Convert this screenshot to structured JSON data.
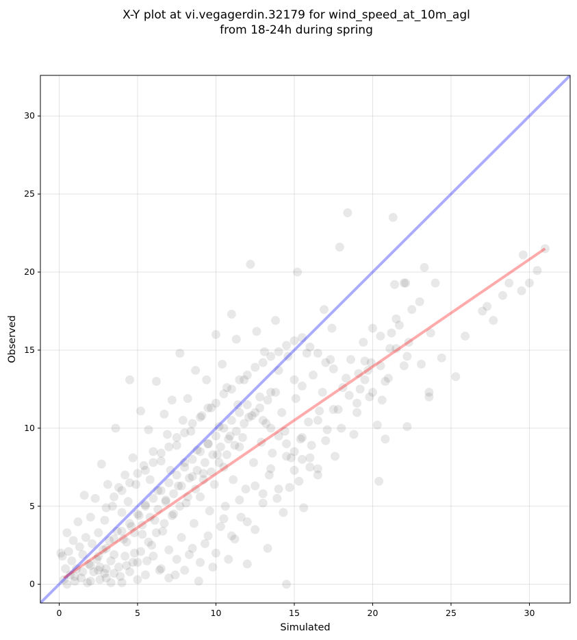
{
  "chart_data": {
    "type": "scatter",
    "title_line1": "X-Y plot at vi.vegagerdin.32179 for wind_speed_at_10m_agl",
    "title_line2": "from 18-24h during spring",
    "xlabel": "Simulated",
    "ylabel": "Observed",
    "xlim": [
      -1.2,
      32.6
    ],
    "ylim": [
      -1.2,
      32.6
    ],
    "xticks": [
      0,
      5,
      10,
      15,
      20,
      25,
      30
    ],
    "yticks": [
      0,
      5,
      10,
      15,
      20,
      25,
      30
    ],
    "grid": true,
    "identity_line": {
      "x": [
        -1.2,
        32.6
      ],
      "y": [
        -1.2,
        32.6
      ],
      "color": "#0000ff"
    },
    "fit_line": {
      "x": [
        0.3,
        31.0
      ],
      "y": [
        0.4,
        21.5
      ],
      "color": "#ff0000"
    },
    "point_color": "#000000",
    "points": [
      [
        31.0,
        21.5
      ],
      [
        30.5,
        20.1
      ],
      [
        30.0,
        19.3
      ],
      [
        29.6,
        21.1
      ],
      [
        29.5,
        18.8
      ],
      [
        28.7,
        19.3
      ],
      [
        28.3,
        18.5
      ],
      [
        27.7,
        16.9
      ],
      [
        27.3,
        17.8
      ],
      [
        27.0,
        17.5
      ],
      [
        25.9,
        15.9
      ],
      [
        25.3,
        13.3
      ],
      [
        24.4,
        14.5
      ],
      [
        24.0,
        19.3
      ],
      [
        23.7,
        16.1
      ],
      [
        23.6,
        12.3
      ],
      [
        23.6,
        12.0
      ],
      [
        23.3,
        20.3
      ],
      [
        23.1,
        14.1
      ],
      [
        23.0,
        18.1
      ],
      [
        22.5,
        17.6
      ],
      [
        22.3,
        15.5
      ],
      [
        22.2,
        14.6
      ],
      [
        22.2,
        10.1
      ],
      [
        22.1,
        19.3
      ],
      [
        22.0,
        19.3
      ],
      [
        22.0,
        14.0
      ],
      [
        21.7,
        16.6
      ],
      [
        21.5,
        17.0
      ],
      [
        21.4,
        19.2
      ],
      [
        21.3,
        23.5
      ],
      [
        21.2,
        16.1
      ],
      [
        21.1,
        15.1
      ],
      [
        20.8,
        13.0
      ],
      [
        20.8,
        9.3
      ],
      [
        20.6,
        11.8
      ],
      [
        20.5,
        15.9
      ],
      [
        20.4,
        6.6
      ],
      [
        20.3,
        10.2
      ],
      [
        20.0,
        16.4
      ],
      [
        19.9,
        14.2
      ],
      [
        19.8,
        12.0
      ],
      [
        19.7,
        13.7
      ],
      [
        19.5,
        14.3
      ],
      [
        19.4,
        15.5
      ],
      [
        19.2,
        12.5
      ],
      [
        19.1,
        13.5
      ],
      [
        19.0,
        11.6
      ],
      [
        18.8,
        9.6
      ],
      [
        18.6,
        14.4
      ],
      [
        18.4,
        23.8
      ],
      [
        18.3,
        13.2
      ],
      [
        18.1,
        12.6
      ],
      [
        17.9,
        21.6
      ],
      [
        17.8,
        11.2
      ],
      [
        17.6,
        8.2
      ],
      [
        17.4,
        16.4
      ],
      [
        17.3,
        14.4
      ],
      [
        17.1,
        9.9
      ],
      [
        16.9,
        17.6
      ],
      [
        16.8,
        12.3
      ],
      [
        16.6,
        11.1
      ],
      [
        16.5,
        7.4
      ],
      [
        16.2,
        13.4
      ],
      [
        16.1,
        8.9
      ],
      [
        15.9,
        10.4
      ],
      [
        15.8,
        14.8
      ],
      [
        15.6,
        4.9
      ],
      [
        15.5,
        12.7
      ],
      [
        15.4,
        9.3
      ],
      [
        15.3,
        6.6
      ],
      [
        15.2,
        20.0
      ],
      [
        15.1,
        11.9
      ],
      [
        15.0,
        13.1
      ],
      [
        14.8,
        8.1
      ],
      [
        14.7,
        6.2
      ],
      [
        14.6,
        14.6
      ],
      [
        14.5,
        0.0
      ],
      [
        14.4,
        9.8
      ],
      [
        14.3,
        4.6
      ],
      [
        14.2,
        11.0
      ],
      [
        14.0,
        13.7
      ],
      [
        13.9,
        5.5
      ],
      [
        13.8,
        16.9
      ],
      [
        13.6,
        8.4
      ],
      [
        13.5,
        12.3
      ],
      [
        13.4,
        7.0
      ],
      [
        13.3,
        2.3
      ],
      [
        13.2,
        10.3
      ],
      [
        13.1,
        14.9
      ],
      [
        13.0,
        5.8
      ],
      [
        12.9,
        9.1
      ],
      [
        12.8,
        12.0
      ],
      [
        12.6,
        16.2
      ],
      [
        12.5,
        3.5
      ],
      [
        12.4,
        7.8
      ],
      [
        12.2,
        20.5
      ],
      [
        12.1,
        10.7
      ],
      [
        12.0,
        1.3
      ],
      [
        11.9,
        6.1
      ],
      [
        11.8,
        13.1
      ],
      [
        11.6,
        4.3
      ],
      [
        11.5,
        8.8
      ],
      [
        11.4,
        11.5
      ],
      [
        11.3,
        15.7
      ],
      [
        11.2,
        2.9
      ],
      [
        11.1,
        6.7
      ],
      [
        11.0,
        17.3
      ],
      [
        10.9,
        9.5
      ],
      [
        10.8,
        1.6
      ],
      [
        10.7,
        12.6
      ],
      [
        10.6,
        5.0
      ],
      [
        10.5,
        7.5
      ],
      [
        10.4,
        14.1
      ],
      [
        10.3,
        3.7
      ],
      [
        10.2,
        10.1
      ],
      [
        10.1,
        8.3
      ],
      [
        10.0,
        16.0
      ],
      [
        9.9,
        6.4
      ],
      [
        9.8,
        1.1
      ],
      [
        9.7,
        11.3
      ],
      [
        9.6,
        4.7
      ],
      [
        9.5,
        9.0
      ],
      [
        9.4,
        13.1
      ],
      [
        9.3,
        2.6
      ],
      [
        9.2,
        7.1
      ],
      [
        9.1,
        10.8
      ],
      [
        9.0,
        5.6
      ],
      [
        8.9,
        0.2
      ],
      [
        8.8,
        8.6
      ],
      [
        8.7,
        13.7
      ],
      [
        8.6,
        3.9
      ],
      [
        8.5,
        6.9
      ],
      [
        8.4,
        9.8
      ],
      [
        8.3,
        1.9
      ],
      [
        8.2,
        11.9
      ],
      [
        8.1,
        5.2
      ],
      [
        8.0,
        7.8
      ],
      [
        7.9,
        10.5
      ],
      [
        7.8,
        3.0
      ],
      [
        7.7,
        14.8
      ],
      [
        7.6,
        6.3
      ],
      [
        7.5,
        8.9
      ],
      [
        7.4,
        0.6
      ],
      [
        7.3,
        4.5
      ],
      [
        7.2,
        11.8
      ],
      [
        7.1,
        7.3
      ],
      [
        7.0,
        2.2
      ],
      [
        6.9,
        9.6
      ],
      [
        6.8,
        5.4
      ],
      [
        6.7,
        10.9
      ],
      [
        6.6,
        3.4
      ],
      [
        6.5,
        7.9
      ],
      [
        6.4,
        0.9
      ],
      [
        6.3,
        6.0
      ],
      [
        6.2,
        13.0
      ],
      [
        6.1,
        4.1
      ],
      [
        6.0,
        8.5
      ],
      [
        5.9,
        2.5
      ],
      [
        5.8,
        6.7
      ],
      [
        5.7,
        9.9
      ],
      [
        5.6,
        1.5
      ],
      [
        5.5,
        5.1
      ],
      [
        5.4,
        7.6
      ],
      [
        5.3,
        3.2
      ],
      [
        5.2,
        11.1
      ],
      [
        5.1,
        4.4
      ],
      [
        5.0,
        0.3
      ],
      [
        4.9,
        6.4
      ],
      [
        4.8,
        2.0
      ],
      [
        4.7,
        8.1
      ],
      [
        4.6,
        3.7
      ],
      [
        4.5,
        13.1
      ],
      [
        4.4,
        5.3
      ],
      [
        4.3,
        1.2
      ],
      [
        4.2,
        7.0
      ],
      [
        4.1,
        2.9
      ],
      [
        4.0,
        4.6
      ],
      [
        3.9,
        0.5
      ],
      [
        3.8,
        6.2
      ],
      [
        3.7,
        3.4
      ],
      [
        3.6,
        10.0
      ],
      [
        3.5,
        1.9
      ],
      [
        3.4,
        5.0
      ],
      [
        3.3,
        0.1
      ],
      [
        3.2,
        2.8
      ],
      [
        3.1,
        6.4
      ],
      [
        3.0,
        1.0
      ],
      [
        2.9,
        4.1
      ],
      [
        2.8,
        2.2
      ],
      [
        2.7,
        7.7
      ],
      [
        2.6,
        0.3
      ],
      [
        2.5,
        3.3
      ],
      [
        2.4,
        1.6
      ],
      [
        2.3,
        5.5
      ],
      [
        2.2,
        0.8
      ],
      [
        2.1,
        2.6
      ],
      [
        2.0,
        4.3
      ],
      [
        1.9,
        1.3
      ],
      [
        1.8,
        0.1
      ],
      [
        1.7,
        3.0
      ],
      [
        1.6,
        5.7
      ],
      [
        1.5,
        1.9
      ],
      [
        1.4,
        0.4
      ],
      [
        1.3,
        2.4
      ],
      [
        1.2,
        4.0
      ],
      [
        1.1,
        1.0
      ],
      [
        1.0,
        0.2
      ],
      [
        0.9,
        2.8
      ],
      [
        0.8,
        1.5
      ],
      [
        0.7,
        0.6
      ],
      [
        0.6,
        2.1
      ],
      [
        0.5,
        3.3
      ],
      [
        0.4,
        1.0
      ],
      [
        0.3,
        0.3
      ],
      [
        0.2,
        1.8
      ],
      [
        0.1,
        2.0
      ],
      [
        0.5,
        0.0
      ],
      [
        1.0,
        0.5
      ],
      [
        1.5,
        0.8
      ],
      [
        2.0,
        0.2
      ],
      [
        2.5,
        0.9
      ],
      [
        3.0,
        0.4
      ],
      [
        3.5,
        0.7
      ],
      [
        4.0,
        0.1
      ],
      [
        4.5,
        0.8
      ],
      [
        5.0,
        1.4
      ],
      [
        5.5,
        0.6
      ],
      [
        6.0,
        1.8
      ],
      [
        6.5,
        1.0
      ],
      [
        7.0,
        0.4
      ],
      [
        7.5,
        1.6
      ],
      [
        8.0,
        0.9
      ],
      [
        8.5,
        2.3
      ],
      [
        9.0,
        1.4
      ],
      [
        9.5,
        3.1
      ],
      [
        10.0,
        2.0
      ],
      [
        10.5,
        4.2
      ],
      [
        11.0,
        3.1
      ],
      [
        11.5,
        5.4
      ],
      [
        12.0,
        4.0
      ],
      [
        12.5,
        6.3
      ],
      [
        13.0,
        5.2
      ],
      [
        13.5,
        7.4
      ],
      [
        14.0,
        6.1
      ],
      [
        14.5,
        8.2
      ],
      [
        15.0,
        7.3
      ],
      [
        15.5,
        9.4
      ],
      [
        16.0,
        8.1
      ],
      [
        16.5,
        10.5
      ],
      [
        17.0,
        9.2
      ],
      [
        17.5,
        11.2
      ],
      [
        18.0,
        10.0
      ],
      [
        18.5,
        12.1
      ],
      [
        19.0,
        11.0
      ],
      [
        19.5,
        13.1
      ],
      [
        20.0,
        12.3
      ],
      [
        20.5,
        14.0
      ],
      [
        21.0,
        13.2
      ],
      [
        21.5,
        15.1
      ],
      [
        3.0,
        4.9
      ],
      [
        3.5,
        5.6
      ],
      [
        4.0,
        6.0
      ],
      [
        4.5,
        6.5
      ],
      [
        5.0,
        7.1
      ],
      [
        5.5,
        7.3
      ],
      [
        6.0,
        7.8
      ],
      [
        6.5,
        8.4
      ],
      [
        7.0,
        8.8
      ],
      [
        7.5,
        9.4
      ],
      [
        8.0,
        9.7
      ],
      [
        8.5,
        10.3
      ],
      [
        9.0,
        10.7
      ],
      [
        9.5,
        11.3
      ],
      [
        10.0,
        11.6
      ],
      [
        10.5,
        12.2
      ],
      [
        11.0,
        12.5
      ],
      [
        11.5,
        13.1
      ],
      [
        12.0,
        13.4
      ],
      [
        12.5,
        13.9
      ],
      [
        13.0,
        14.2
      ],
      [
        13.5,
        14.6
      ],
      [
        14.0,
        14.9
      ],
      [
        14.5,
        15.3
      ],
      [
        15.0,
        15.6
      ],
      [
        15.5,
        15.8
      ],
      [
        16.0,
        15.2
      ],
      [
        16.5,
        14.8
      ],
      [
        17.0,
        14.2
      ],
      [
        17.5,
        13.8
      ],
      [
        2.0,
        1.2
      ],
      [
        2.5,
        1.8
      ],
      [
        3.0,
        2.3
      ],
      [
        3.5,
        2.9
      ],
      [
        4.0,
        3.4
      ],
      [
        4.5,
        3.9
      ],
      [
        5.0,
        4.5
      ],
      [
        5.5,
        5.0
      ],
      [
        6.0,
        5.5
      ],
      [
        6.5,
        6.0
      ],
      [
        7.0,
        6.5
      ],
      [
        7.5,
        7.0
      ],
      [
        8.0,
        7.5
      ],
      [
        8.5,
        8.0
      ],
      [
        9.0,
        8.5
      ],
      [
        9.5,
        9.0
      ],
      [
        10.0,
        9.5
      ],
      [
        10.5,
        10.0
      ],
      [
        11.0,
        10.5
      ],
      [
        11.5,
        11.0
      ],
      [
        12.0,
        11.5
      ],
      [
        12.5,
        11.0
      ],
      [
        13.0,
        10.5
      ],
      [
        13.5,
        10.0
      ],
      [
        14.0,
        9.5
      ],
      [
        14.5,
        9.0
      ],
      [
        15.0,
        8.5
      ],
      [
        15.5,
        8.0
      ],
      [
        16.0,
        7.5
      ],
      [
        16.5,
        7.0
      ],
      [
        2.6,
        1.1
      ],
      [
        2.9,
        0.7
      ],
      [
        3.3,
        1.5
      ],
      [
        3.8,
        1.1
      ],
      [
        4.2,
        1.8
      ],
      [
        4.7,
        1.4
      ],
      [
        5.2,
        2.1
      ],
      [
        5.7,
        2.7
      ],
      [
        6.2,
        3.3
      ],
      [
        6.7,
        3.9
      ],
      [
        7.2,
        4.4
      ],
      [
        7.7,
        5.0
      ],
      [
        8.2,
        5.6
      ],
      [
        8.7,
        6.1
      ],
      [
        9.2,
        6.7
      ],
      [
        9.7,
        7.2
      ],
      [
        10.2,
        7.8
      ],
      [
        10.7,
        8.3
      ],
      [
        11.2,
        8.9
      ],
      [
        11.7,
        9.4
      ],
      [
        4.3,
        2.7
      ],
      [
        4.8,
        3.3
      ],
      [
        5.3,
        3.8
      ],
      [
        5.8,
        4.3
      ],
      [
        6.3,
        4.8
      ],
      [
        6.8,
        5.3
      ],
      [
        7.3,
        5.8
      ],
      [
        7.8,
        6.3
      ],
      [
        8.3,
        6.8
      ],
      [
        8.8,
        7.3
      ],
      [
        9.3,
        7.8
      ],
      [
        9.8,
        8.3
      ],
      [
        10.3,
        8.8
      ],
      [
        10.8,
        9.3
      ],
      [
        11.3,
        9.8
      ],
      [
        11.8,
        10.3
      ],
      [
        12.3,
        10.8
      ],
      [
        12.8,
        11.3
      ],
      [
        13.3,
        11.8
      ],
      [
        13.8,
        12.3
      ]
    ]
  }
}
